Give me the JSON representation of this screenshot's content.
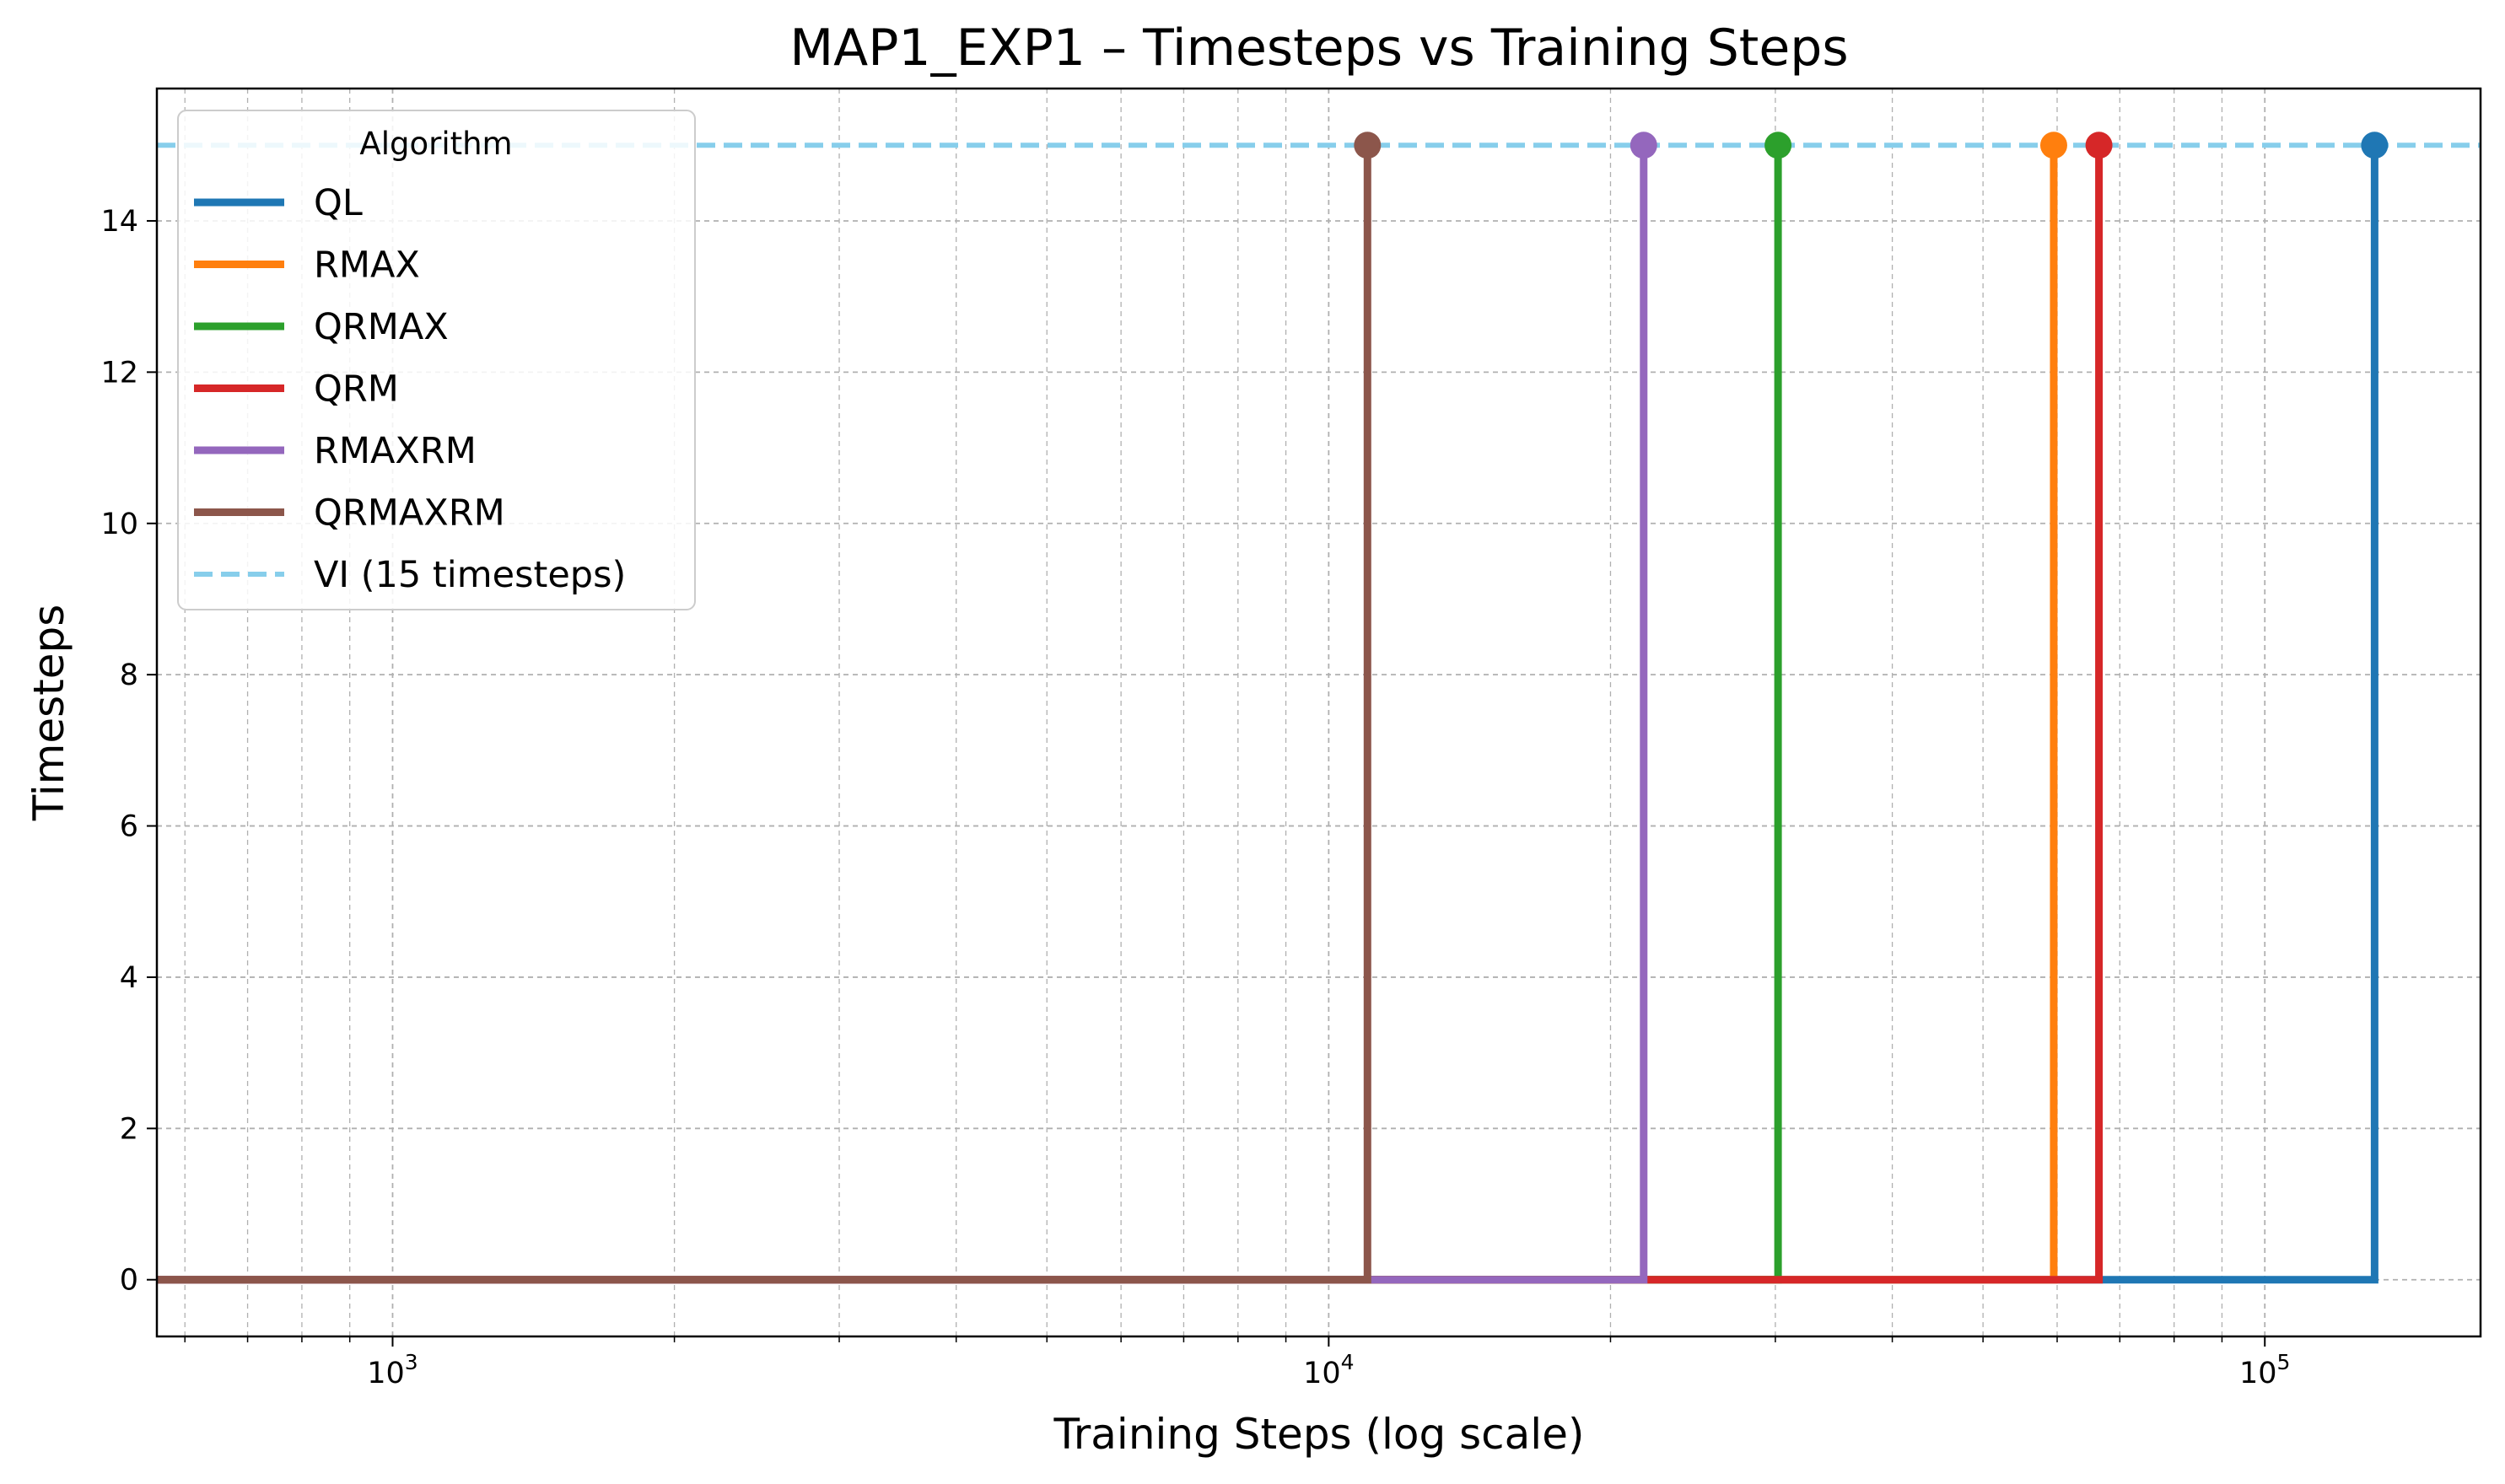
{
  "chart_data": {
    "type": "line",
    "title": "MAP1_EXP1 – Timesteps vs Training Steps",
    "xlabel": "Training Steps (log scale)",
    "ylabel": "Timesteps",
    "xscale": "log",
    "xlim": [
      560,
      170000
    ],
    "ylim": [
      -0.75,
      15.75
    ],
    "grid": true,
    "x_ticks": [
      {
        "value": 1000,
        "base": "10",
        "exp": "3"
      },
      {
        "value": 10000,
        "base": "10",
        "exp": "4"
      },
      {
        "value": 100000,
        "base": "10",
        "exp": "5"
      }
    ],
    "y_ticks": [
      "0",
      "2",
      "4",
      "6",
      "8",
      "10",
      "12",
      "14"
    ],
    "legend": {
      "title": "Algorithm",
      "placement": "top-left"
    },
    "series": [
      {
        "name": "QL",
        "color": "#1f77b4",
        "step_at": 131000,
        "start": 560,
        "y_before": 0,
        "y_after": 15
      },
      {
        "name": "RMAX",
        "color": "#ff7f0e",
        "step_at": 59500,
        "start": 560,
        "y_before": 0,
        "y_after": 15
      },
      {
        "name": "QRMAX",
        "color": "#2ca02c",
        "step_at": 30200,
        "start": 560,
        "y_before": 0,
        "y_after": 15
      },
      {
        "name": "QRM",
        "color": "#d62728",
        "step_at": 66500,
        "start": 560,
        "y_before": 0,
        "y_after": 15
      },
      {
        "name": "RMAXRM",
        "color": "#9467bd",
        "step_at": 21700,
        "start": 560,
        "y_before": 0,
        "y_after": 15
      },
      {
        "name": "QRMAXRM",
        "color": "#8c564b",
        "step_at": 11000,
        "start": 560,
        "y_before": 0,
        "y_after": 15
      }
    ],
    "reference_line": {
      "name": "VI (15 timesteps)",
      "color": "#87ceeb",
      "y": 15,
      "style": "dashed"
    }
  }
}
